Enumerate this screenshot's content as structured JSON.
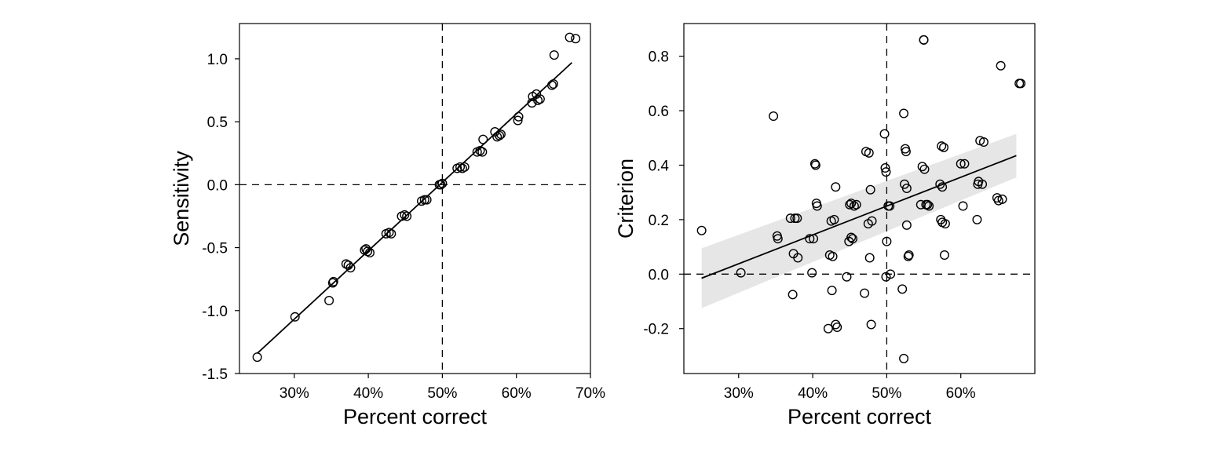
{
  "chart_data": [
    {
      "type": "scatter",
      "panel": "left",
      "xlabel": "Percent correct",
      "ylabel": "Sensitivity",
      "xlim": [
        0.226,
        0.7
      ],
      "ylim": [
        -1.5,
        1.28
      ],
      "xticks": [
        0.3,
        0.4,
        0.5,
        0.6,
        0.7
      ],
      "xtick_labels": [
        "30%",
        "40%",
        "50%",
        "60%",
        "70%"
      ],
      "yticks": [
        1.0,
        0.5,
        0.0,
        -0.5,
        -1.0,
        -1.5
      ],
      "ytick_labels": [
        "1.0",
        "0.5",
        "0.0",
        "-0.5",
        "-1.0",
        "-1.5"
      ],
      "reference_lines": {
        "x": 0.5,
        "y": 0.0
      },
      "fit_line": {
        "x": [
          0.25,
          0.675
        ],
        "y": [
          -1.34,
          0.97
        ]
      },
      "grid": false,
      "points": [
        [
          0.25,
          -1.37
        ],
        [
          0.301,
          -1.05
        ],
        [
          0.347,
          -0.92
        ],
        [
          0.352,
          -0.78
        ],
        [
          0.353,
          -0.77
        ],
        [
          0.37,
          -0.63
        ],
        [
          0.373,
          -0.64
        ],
        [
          0.376,
          -0.66
        ],
        [
          0.395,
          -0.52
        ],
        [
          0.397,
          -0.51
        ],
        [
          0.399,
          -0.53
        ],
        [
          0.402,
          -0.54
        ],
        [
          0.424,
          -0.39
        ],
        [
          0.428,
          -0.38
        ],
        [
          0.431,
          -0.39
        ],
        [
          0.445,
          -0.25
        ],
        [
          0.449,
          -0.24
        ],
        [
          0.452,
          -0.25
        ],
        [
          0.472,
          -0.13
        ],
        [
          0.476,
          -0.12
        ],
        [
          0.479,
          -0.12
        ],
        [
          0.496,
          0.0
        ],
        [
          0.498,
          0.0
        ],
        [
          0.5,
          0.01
        ],
        [
          0.52,
          0.13
        ],
        [
          0.524,
          0.14
        ],
        [
          0.527,
          0.13
        ],
        [
          0.53,
          0.14
        ],
        [
          0.547,
          0.26
        ],
        [
          0.551,
          0.27
        ],
        [
          0.554,
          0.26
        ],
        [
          0.555,
          0.36
        ],
        [
          0.571,
          0.42
        ],
        [
          0.574,
          0.38
        ],
        [
          0.577,
          0.39
        ],
        [
          0.579,
          0.4
        ],
        [
          0.602,
          0.51
        ],
        [
          0.603,
          0.54
        ],
        [
          0.621,
          0.65
        ],
        [
          0.622,
          0.7
        ],
        [
          0.627,
          0.72
        ],
        [
          0.629,
          0.67
        ],
        [
          0.632,
          0.68
        ],
        [
          0.648,
          0.79
        ],
        [
          0.65,
          0.8
        ],
        [
          0.651,
          1.03
        ],
        [
          0.672,
          1.17
        ],
        [
          0.68,
          1.16
        ]
      ]
    },
    {
      "type": "scatter",
      "panel": "right",
      "xlabel": "Percent correct",
      "ylabel": "Criterion",
      "xlim": [
        0.226,
        0.7
      ],
      "ylim": [
        -0.365,
        0.92
      ],
      "xticks": [
        0.3,
        0.4,
        0.5,
        0.6
      ],
      "xtick_labels": [
        "30%",
        "40%",
        "50%",
        "60%"
      ],
      "yticks": [
        0.8,
        0.6,
        0.4,
        0.2,
        0.0,
        -0.2
      ],
      "ytick_labels": [
        "0.8",
        "0.6",
        "0.4",
        "0.2",
        "0.0",
        "-0.2"
      ],
      "reference_lines": {
        "x": 0.5,
        "y": 0.0
      },
      "fit_line": {
        "x": [
          0.25,
          0.675
        ],
        "y": [
          -0.015,
          0.435
        ]
      },
      "confidence_band": {
        "x": [
          0.25,
          0.675
        ],
        "lower": [
          -0.125,
          0.355
        ],
        "upper": [
          0.095,
          0.515
        ]
      },
      "grid": false,
      "points": [
        [
          0.25,
          0.16
        ],
        [
          0.303,
          0.005
        ],
        [
          0.347,
          0.58
        ],
        [
          0.352,
          0.14
        ],
        [
          0.353,
          0.13
        ],
        [
          0.37,
          0.205
        ],
        [
          0.373,
          -0.075
        ],
        [
          0.374,
          0.075
        ],
        [
          0.376,
          0.205
        ],
        [
          0.379,
          0.205
        ],
        [
          0.38,
          0.06
        ],
        [
          0.396,
          0.13
        ],
        [
          0.399,
          0.005
        ],
        [
          0.401,
          0.13
        ],
        [
          0.403,
          0.405
        ],
        [
          0.404,
          0.4
        ],
        [
          0.405,
          0.26
        ],
        [
          0.406,
          0.25
        ],
        [
          0.421,
          -0.2
        ],
        [
          0.423,
          0.07
        ],
        [
          0.425,
          0.195
        ],
        [
          0.426,
          -0.06
        ],
        [
          0.427,
          0.065
        ],
        [
          0.429,
          0.2
        ],
        [
          0.431,
          0.32
        ],
        [
          0.431,
          -0.185
        ],
        [
          0.433,
          -0.195
        ],
        [
          0.446,
          -0.01
        ],
        [
          0.449,
          0.12
        ],
        [
          0.45,
          0.255
        ],
        [
          0.452,
          0.26
        ],
        [
          0.452,
          0.135
        ],
        [
          0.454,
          0.13
        ],
        [
          0.456,
          0.25
        ],
        [
          0.459,
          0.255
        ],
        [
          0.47,
          -0.07
        ],
        [
          0.472,
          0.45
        ],
        [
          0.475,
          0.185
        ],
        [
          0.476,
          0.445
        ],
        [
          0.477,
          0.06
        ],
        [
          0.478,
          0.31
        ],
        [
          0.479,
          -0.185
        ],
        [
          0.48,
          0.195
        ],
        [
          0.497,
          0.515
        ],
        [
          0.498,
          0.39
        ],
        [
          0.499,
          0.375
        ],
        [
          0.499,
          -0.01
        ],
        [
          0.5,
          0.12
        ],
        [
          0.502,
          0.25
        ],
        [
          0.504,
          0.25
        ],
        [
          0.505,
          0.0
        ],
        [
          0.521,
          -0.055
        ],
        [
          0.523,
          0.59
        ],
        [
          0.524,
          0.33
        ],
        [
          0.525,
          0.46
        ],
        [
          0.526,
          0.45
        ],
        [
          0.527,
          0.315
        ],
        [
          0.527,
          0.18
        ],
        [
          0.529,
          0.065
        ],
        [
          0.53,
          0.07
        ],
        [
          0.546,
          0.255
        ],
        [
          0.548,
          0.395
        ],
        [
          0.55,
          0.86
        ],
        [
          0.551,
          0.385
        ],
        [
          0.553,
          0.255
        ],
        [
          0.555,
          0.255
        ],
        [
          0.557,
          0.25
        ],
        [
          0.572,
          0.33
        ],
        [
          0.573,
          0.2
        ],
        [
          0.574,
          0.47
        ],
        [
          0.575,
          0.32
        ],
        [
          0.575,
          0.19
        ],
        [
          0.577,
          0.465
        ],
        [
          0.578,
          0.07
        ],
        [
          0.579,
          0.185
        ],
        [
          0.6,
          0.405
        ],
        [
          0.603,
          0.25
        ],
        [
          0.605,
          0.405
        ],
        [
          0.622,
          0.2
        ],
        [
          0.623,
          0.33
        ],
        [
          0.624,
          0.34
        ],
        [
          0.626,
          0.49
        ],
        [
          0.629,
          0.33
        ],
        [
          0.631,
          0.485
        ],
        [
          0.649,
          0.28
        ],
        [
          0.651,
          0.27
        ],
        [
          0.654,
          0.765
        ],
        [
          0.656,
          0.275
        ],
        [
          0.679,
          0.7
        ],
        [
          0.681,
          0.7
        ],
        [
          0.523,
          -0.31
        ],
        [
          0.55,
          0.86
        ]
      ]
    }
  ],
  "colors": {
    "points": "#000000",
    "fit": "#000000",
    "band": "#e6e6e6",
    "reference": "#000000"
  }
}
